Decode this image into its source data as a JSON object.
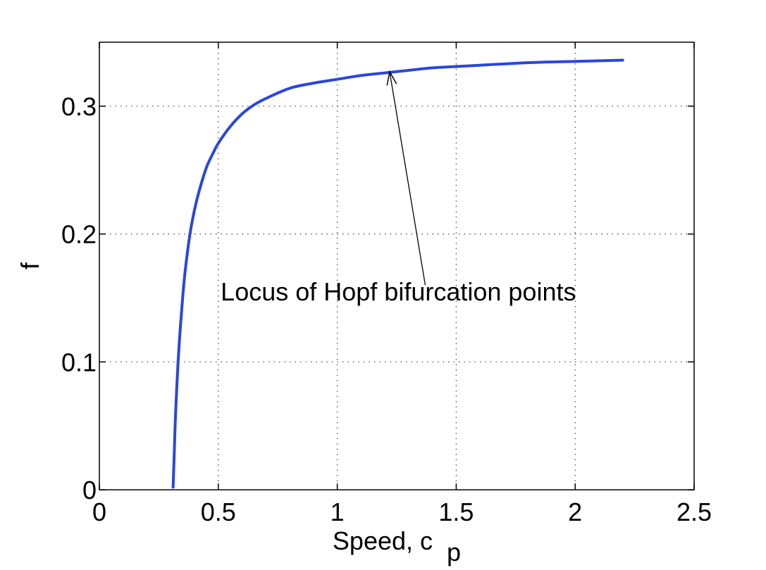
{
  "chart_data": {
    "type": "line",
    "title": "",
    "xlabel": "Speed, c",
    "xlabel_subscript": "p",
    "ylabel": "f",
    "xlim": [
      0,
      2.5
    ],
    "ylim": [
      0,
      0.35
    ],
    "xticks": [
      0,
      0.5,
      1,
      1.5,
      2,
      2.5
    ],
    "xtick_labels": [
      "0",
      "0.5",
      "1",
      "1.5",
      "2",
      "2.5"
    ],
    "yticks": [
      0,
      0.1,
      0.2,
      0.3
    ],
    "ytick_labels": [
      "0",
      "0.1",
      "0.2",
      "0.3"
    ],
    "grid": true,
    "series": [
      {
        "color": "#2a45e0",
        "x": [
          0.31,
          0.315,
          0.32,
          0.33,
          0.34,
          0.35,
          0.36,
          0.38,
          0.4,
          0.42,
          0.45,
          0.48,
          0.5,
          0.55,
          0.6,
          0.65,
          0.7,
          0.8,
          0.9,
          1.0,
          1.1,
          1.2,
          1.3,
          1.4,
          1.5,
          1.6,
          1.8,
          2.0,
          2.2
        ],
        "y": [
          0.002,
          0.03,
          0.058,
          0.097,
          0.126,
          0.15,
          0.17,
          0.199,
          0.219,
          0.234,
          0.252,
          0.264,
          0.271,
          0.284,
          0.294,
          0.301,
          0.306,
          0.314,
          0.318,
          0.321,
          0.324,
          0.326,
          0.328,
          0.33,
          0.331,
          0.332,
          0.334,
          0.335,
          0.336
        ]
      }
    ],
    "annotations": [
      {
        "text": "Locus of Hopf bifurcation points",
        "text_x": 0.51,
        "text_y": 0.148,
        "arrow_from": [
          1.37,
          0.16
        ],
        "arrow_to": [
          1.22,
          0.327
        ]
      }
    ]
  }
}
